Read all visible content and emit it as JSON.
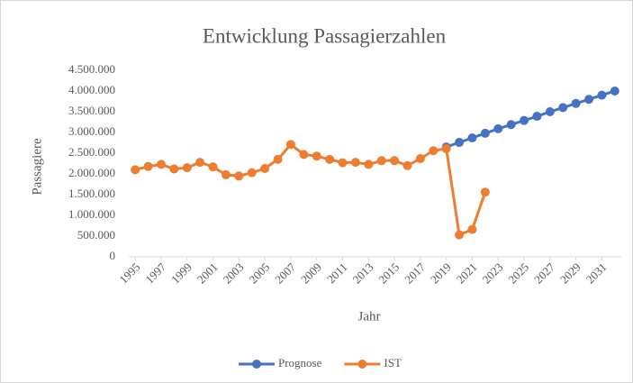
{
  "chart_data": {
    "type": "line",
    "title": "Entwicklung  Passagierzahlen",
    "xlabel": "Jahr",
    "ylabel": "Passagiere",
    "x": [
      1995,
      1996,
      1997,
      1998,
      1999,
      2000,
      2001,
      2002,
      2003,
      2004,
      2005,
      2006,
      2007,
      2008,
      2009,
      2010,
      2011,
      2012,
      2013,
      2014,
      2015,
      2016,
      2017,
      2018,
      2019,
      2020,
      2021,
      2022,
      2023,
      2024,
      2025,
      2026,
      2027,
      2028,
      2029,
      2030,
      2031,
      2032
    ],
    "series": [
      {
        "name": "Prognose",
        "color": "#4472c4",
        "values": [
          null,
          null,
          null,
          null,
          null,
          null,
          null,
          null,
          null,
          null,
          null,
          null,
          null,
          null,
          null,
          null,
          null,
          null,
          null,
          null,
          null,
          null,
          null,
          null,
          2650000,
          2760000,
          2870000,
          2980000,
          3090000,
          3190000,
          3290000,
          3390000,
          3500000,
          3600000,
          3700000,
          3800000,
          3900000,
          4000000
        ]
      },
      {
        "name": "IST",
        "color": "#ed7d31",
        "values": [
          2100000,
          2180000,
          2230000,
          2120000,
          2150000,
          2280000,
          2170000,
          1980000,
          1950000,
          2030000,
          2130000,
          2350000,
          2710000,
          2470000,
          2430000,
          2350000,
          2270000,
          2280000,
          2230000,
          2320000,
          2320000,
          2200000,
          2370000,
          2560000,
          2610000,
          530000,
          660000,
          1560000,
          null,
          null,
          null,
          null,
          null,
          null,
          null,
          null,
          null,
          null
        ]
      }
    ],
    "xlim": [
      1994.5,
      2032.5
    ],
    "xticks": [
      1995,
      1997,
      1999,
      2001,
      2003,
      2005,
      2007,
      2009,
      2011,
      2013,
      2015,
      2017,
      2019,
      2021,
      2023,
      2025,
      2027,
      2029,
      2031
    ],
    "ylim": [
      0,
      4500000
    ],
    "yticks": [
      0,
      {
        "value": 500000,
        "label": "500.000"
      },
      {
        "value": 1000000,
        "label": "1.000.000"
      },
      {
        "value": 1500000,
        "label": "1.500.000"
      },
      {
        "value": 2000000,
        "label": "2.000.000"
      },
      {
        "value": 2500000,
        "label": "2.500.000"
      },
      {
        "value": 3000000,
        "label": "3.000.000"
      },
      {
        "value": 3500000,
        "label": "3.500.000"
      },
      {
        "value": 4000000,
        "label": "4.000.000"
      },
      {
        "value": 4500000,
        "label": "4.500.000"
      }
    ],
    "grid": false,
    "legend": "bottom"
  }
}
